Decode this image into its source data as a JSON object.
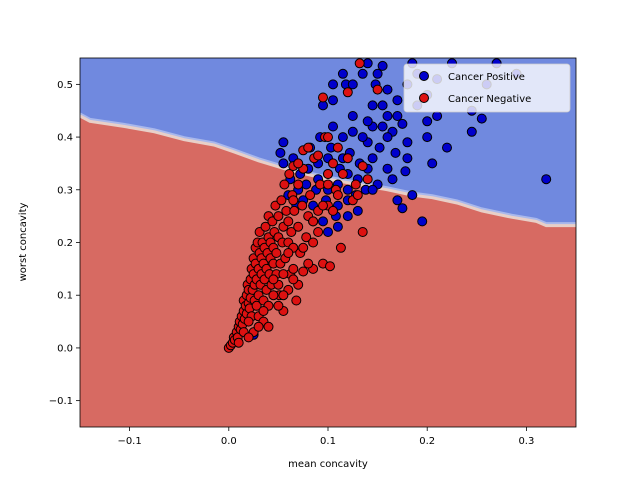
{
  "chart_data": {
    "type": "scatter",
    "title": "",
    "xlabel": "mean concavity",
    "ylabel": "worst concavity",
    "xlim": [
      -0.15,
      0.35
    ],
    "ylim": [
      -0.15,
      0.55
    ],
    "grid": false,
    "legend_position": "top-right",
    "x_ticks": [
      -0.1,
      0.0,
      0.1,
      0.2,
      0.3
    ],
    "x_tick_labels": [
      "−0.1",
      "0.0",
      "0.1",
      "0.2",
      "0.3"
    ],
    "y_ticks": [
      -0.1,
      0.0,
      0.1,
      0.2,
      0.3,
      0.4,
      0.5
    ],
    "y_tick_labels": [
      "−0.1",
      "0.0",
      "0.1",
      "0.2",
      "0.3",
      "0.4",
      "0.5"
    ],
    "colors": {
      "positive_region": "#7089DF",
      "negative_region": "#D76A62",
      "boundary_light": "#E8CFC8",
      "boundary_blue": "#A9B8EC",
      "positive_marker": "#0000CC",
      "negative_marker": "#DD1111"
    },
    "decision_boundary": {
      "x": [
        -0.15,
        -0.14,
        -0.105,
        -0.075,
        -0.045,
        -0.015,
        0.005,
        0.03,
        0.06,
        0.095,
        0.13,
        0.16,
        0.185,
        0.205,
        0.23,
        0.255,
        0.285,
        0.31,
        0.32,
        0.35
      ],
      "y": [
        0.44,
        0.43,
        0.42,
        0.41,
        0.395,
        0.385,
        0.372,
        0.355,
        0.338,
        0.322,
        0.31,
        0.3,
        0.29,
        0.285,
        0.275,
        0.26,
        0.248,
        0.24,
        0.232,
        0.232
      ]
    },
    "series": [
      {
        "name": "Cancer Positive",
        "color": "#0000CC",
        "points": [
          [
            0.32,
            0.32
          ],
          [
            0.245,
            0.41
          ],
          [
            0.255,
            0.435
          ],
          [
            0.245,
            0.45
          ],
          [
            0.2,
            0.4
          ],
          [
            0.205,
            0.35
          ],
          [
            0.195,
            0.24
          ],
          [
            0.175,
            0.425
          ],
          [
            0.18,
            0.39
          ],
          [
            0.18,
            0.36
          ],
          [
            0.178,
            0.335
          ],
          [
            0.165,
            0.41
          ],
          [
            0.168,
            0.37
          ],
          [
            0.17,
            0.28
          ],
          [
            0.175,
            0.265
          ],
          [
            0.16,
            0.44
          ],
          [
            0.16,
            0.4
          ],
          [
            0.16,
            0.34
          ],
          [
            0.155,
            0.46
          ],
          [
            0.155,
            0.42
          ],
          [
            0.152,
            0.38
          ],
          [
            0.15,
            0.31
          ],
          [
            0.148,
            0.5
          ],
          [
            0.145,
            0.46
          ],
          [
            0.145,
            0.42
          ],
          [
            0.145,
            0.36
          ],
          [
            0.14,
            0.43
          ],
          [
            0.14,
            0.39
          ],
          [
            0.14,
            0.34
          ],
          [
            0.138,
            0.3
          ],
          [
            0.135,
            0.52
          ],
          [
            0.135,
            0.4
          ],
          [
            0.132,
            0.35
          ],
          [
            0.13,
            0.32
          ],
          [
            0.128,
            0.29
          ],
          [
            0.125,
            0.44
          ],
          [
            0.125,
            0.41
          ],
          [
            0.122,
            0.37
          ],
          [
            0.12,
            0.33
          ],
          [
            0.12,
            0.3
          ],
          [
            0.12,
            0.28
          ],
          [
            0.118,
            0.5
          ],
          [
            0.115,
            0.4
          ],
          [
            0.115,
            0.36
          ],
          [
            0.112,
            0.34
          ],
          [
            0.11,
            0.31
          ],
          [
            0.11,
            0.27
          ],
          [
            0.108,
            0.25
          ],
          [
            0.105,
            0.47
          ],
          [
            0.105,
            0.42
          ],
          [
            0.103,
            0.38
          ],
          [
            0.1,
            0.36
          ],
          [
            0.1,
            0.33
          ],
          [
            0.1,
            0.3
          ],
          [
            0.098,
            0.28
          ],
          [
            0.095,
            0.24
          ],
          [
            0.092,
            0.4
          ],
          [
            0.09,
            0.35
          ],
          [
            0.09,
            0.32
          ],
          [
            0.088,
            0.3
          ],
          [
            0.085,
            0.27
          ],
          [
            0.085,
            0.24
          ],
          [
            0.082,
            0.38
          ],
          [
            0.08,
            0.34
          ],
          [
            0.078,
            0.31
          ],
          [
            0.075,
            0.28
          ],
          [
            0.072,
            0.33
          ],
          [
            0.07,
            0.3
          ],
          [
            0.068,
            0.27
          ],
          [
            0.065,
            0.36
          ],
          [
            0.062,
            0.32
          ],
          [
            0.06,
            0.29
          ],
          [
            0.055,
            0.39
          ],
          [
            0.055,
            0.35
          ],
          [
            0.052,
            0.37
          ],
          [
            0.14,
            0.54
          ],
          [
            0.155,
            0.535
          ],
          [
            0.185,
            0.54
          ],
          [
            0.19,
            0.52
          ],
          [
            0.21,
            0.51
          ],
          [
            0.225,
            0.54
          ],
          [
            0.26,
            0.5
          ],
          [
            0.27,
            0.54
          ],
          [
            0.29,
            0.52
          ],
          [
            0.18,
            0.5
          ],
          [
            0.17,
            0.47
          ],
          [
            0.19,
            0.46
          ],
          [
            0.2,
            0.43
          ],
          [
            0.21,
            0.44
          ],
          [
            0.22,
            0.38
          ],
          [
            0.115,
            0.52
          ],
          [
            0.125,
            0.5
          ],
          [
            0.105,
            0.5
          ],
          [
            0.095,
            0.46
          ],
          [
            0.15,
            0.52
          ],
          [
            0.16,
            0.49
          ],
          [
            0.17,
            0.44
          ],
          [
            0.2,
            0.48
          ],
          [
            0.145,
            0.3
          ],
          [
            0.13,
            0.26
          ],
          [
            0.12,
            0.25
          ],
          [
            0.11,
            0.23
          ],
          [
            0.1,
            0.22
          ],
          [
            0.025,
            0.025
          ],
          [
            0.185,
            0.29
          ],
          [
            0.165,
            0.32
          ]
        ]
      },
      {
        "name": "Cancer Negative",
        "color": "#DD1111",
        "points": [
          [
            0.0,
            0.0
          ],
          [
            0.002,
            0.005
          ],
          [
            0.004,
            0.01
          ],
          [
            0.005,
            0.02
          ],
          [
            0.006,
            0.015
          ],
          [
            0.008,
            0.03
          ],
          [
            0.009,
            0.02
          ],
          [
            0.01,
            0.04
          ],
          [
            0.011,
            0.05
          ],
          [
            0.012,
            0.035
          ],
          [
            0.013,
            0.06
          ],
          [
            0.014,
            0.045
          ],
          [
            0.015,
            0.07
          ],
          [
            0.015,
            0.09
          ],
          [
            0.016,
            0.055
          ],
          [
            0.017,
            0.08
          ],
          [
            0.018,
            0.1
          ],
          [
            0.018,
            0.065
          ],
          [
            0.019,
            0.12
          ],
          [
            0.02,
            0.085
          ],
          [
            0.02,
            0.11
          ],
          [
            0.021,
            0.075
          ],
          [
            0.022,
            0.13
          ],
          [
            0.022,
            0.095
          ],
          [
            0.023,
            0.15
          ],
          [
            0.023,
            0.06
          ],
          [
            0.024,
            0.11
          ],
          [
            0.025,
            0.14
          ],
          [
            0.025,
            0.17
          ],
          [
            0.026,
            0.09
          ],
          [
            0.026,
            0.12
          ],
          [
            0.027,
            0.19
          ],
          [
            0.027,
            0.16
          ],
          [
            0.028,
            0.08
          ],
          [
            0.028,
            0.13
          ],
          [
            0.029,
            0.2
          ],
          [
            0.03,
            0.1
          ],
          [
            0.03,
            0.15
          ],
          [
            0.031,
            0.18
          ],
          [
            0.031,
            0.22
          ],
          [
            0.032,
            0.12
          ],
          [
            0.033,
            0.14
          ],
          [
            0.033,
            0.17
          ],
          [
            0.034,
            0.2
          ],
          [
            0.035,
            0.09
          ],
          [
            0.035,
            0.16
          ],
          [
            0.036,
            0.13
          ],
          [
            0.036,
            0.19
          ],
          [
            0.037,
            0.23
          ],
          [
            0.038,
            0.15
          ],
          [
            0.038,
            0.11
          ],
          [
            0.039,
            0.18
          ],
          [
            0.04,
            0.21
          ],
          [
            0.04,
            0.25
          ],
          [
            0.041,
            0.14
          ],
          [
            0.042,
            0.17
          ],
          [
            0.042,
            0.2
          ],
          [
            0.043,
            0.12
          ],
          [
            0.044,
            0.24
          ],
          [
            0.045,
            0.16
          ],
          [
            0.045,
            0.19
          ],
          [
            0.046,
            0.22
          ],
          [
            0.047,
            0.27
          ],
          [
            0.048,
            0.14
          ],
          [
            0.048,
            0.18
          ],
          [
            0.05,
            0.21
          ],
          [
            0.05,
            0.25
          ],
          [
            0.051,
            0.1
          ],
          [
            0.052,
            0.16
          ],
          [
            0.053,
            0.28
          ],
          [
            0.054,
            0.2
          ],
          [
            0.055,
            0.23
          ],
          [
            0.056,
            0.31
          ],
          [
            0.057,
            0.17
          ],
          [
            0.058,
            0.26
          ],
          [
            0.06,
            0.2
          ],
          [
            0.06,
            0.24
          ],
          [
            0.061,
            0.33
          ],
          [
            0.062,
            0.14
          ],
          [
            0.063,
            0.22
          ],
          [
            0.064,
            0.29
          ],
          [
            0.065,
            0.19
          ],
          [
            0.066,
            0.26
          ],
          [
            0.068,
            0.09
          ],
          [
            0.07,
            0.23
          ],
          [
            0.07,
            0.31
          ],
          [
            0.072,
            0.18
          ],
          [
            0.074,
            0.27
          ],
          [
            0.075,
            0.34
          ],
          [
            0.078,
            0.21
          ],
          [
            0.08,
            0.25
          ],
          [
            0.082,
            0.29
          ],
          [
            0.085,
            0.15
          ],
          [
            0.086,
            0.36
          ],
          [
            0.09,
            0.26
          ],
          [
            0.092,
            0.31
          ],
          [
            0.095,
            0.16
          ],
          [
            0.097,
            0.4
          ],
          [
            0.1,
            0.27
          ],
          [
            0.102,
            0.155
          ],
          [
            0.105,
            0.35
          ],
          [
            0.108,
            0.3
          ],
          [
            0.11,
            0.38
          ],
          [
            0.113,
            0.19
          ],
          [
            0.115,
            0.33
          ],
          [
            0.12,
            0.485
          ],
          [
            0.125,
            0.28
          ],
          [
            0.128,
            0.31
          ],
          [
            0.132,
            0.54
          ],
          [
            0.135,
            0.22
          ],
          [
            0.14,
            0.32
          ],
          [
            0.15,
            0.49
          ],
          [
            0.015,
            0.03
          ],
          [
            0.02,
            0.05
          ],
          [
            0.025,
            0.03
          ],
          [
            0.03,
            0.06
          ],
          [
            0.035,
            0.05
          ],
          [
            0.04,
            0.08
          ],
          [
            0.045,
            0.1
          ],
          [
            0.05,
            0.12
          ],
          [
            0.055,
            0.14
          ],
          [
            0.055,
            0.07
          ],
          [
            0.06,
            0.11
          ],
          [
            0.065,
            0.15
          ],
          [
            0.07,
            0.12
          ],
          [
            0.075,
            0.19
          ],
          [
            0.08,
            0.16
          ],
          [
            0.085,
            0.2
          ],
          [
            0.09,
            0.22
          ],
          [
            0.095,
            0.27
          ],
          [
            0.1,
            0.33
          ],
          [
            0.105,
            0.26
          ],
          [
            0.075,
            0.375
          ],
          [
            0.09,
            0.365
          ],
          [
            0.1,
            0.4
          ],
          [
            0.12,
            0.36
          ],
          [
            0.095,
            0.475
          ],
          [
            0.065,
            0.345
          ],
          [
            0.07,
            0.35
          ],
          [
            0.08,
            0.38
          ],
          [
            0.135,
            0.345
          ],
          [
            0.13,
            0.29
          ],
          [
            0.11,
            0.29
          ],
          [
            0.1,
            0.31
          ],
          [
            0.085,
            0.24
          ],
          [
            0.065,
            0.28
          ],
          [
            0.06,
            0.18
          ],
          [
            0.05,
            0.08
          ],
          [
            0.045,
            0.13
          ],
          [
            0.04,
            0.04
          ],
          [
            0.035,
            0.07
          ],
          [
            0.03,
            0.04
          ],
          [
            0.02,
            0.02
          ],
          [
            0.01,
            0.01
          ],
          [
            0.055,
            0.1
          ],
          [
            0.065,
            0.13
          ],
          [
            0.075,
            0.145
          ]
        ]
      }
    ]
  }
}
